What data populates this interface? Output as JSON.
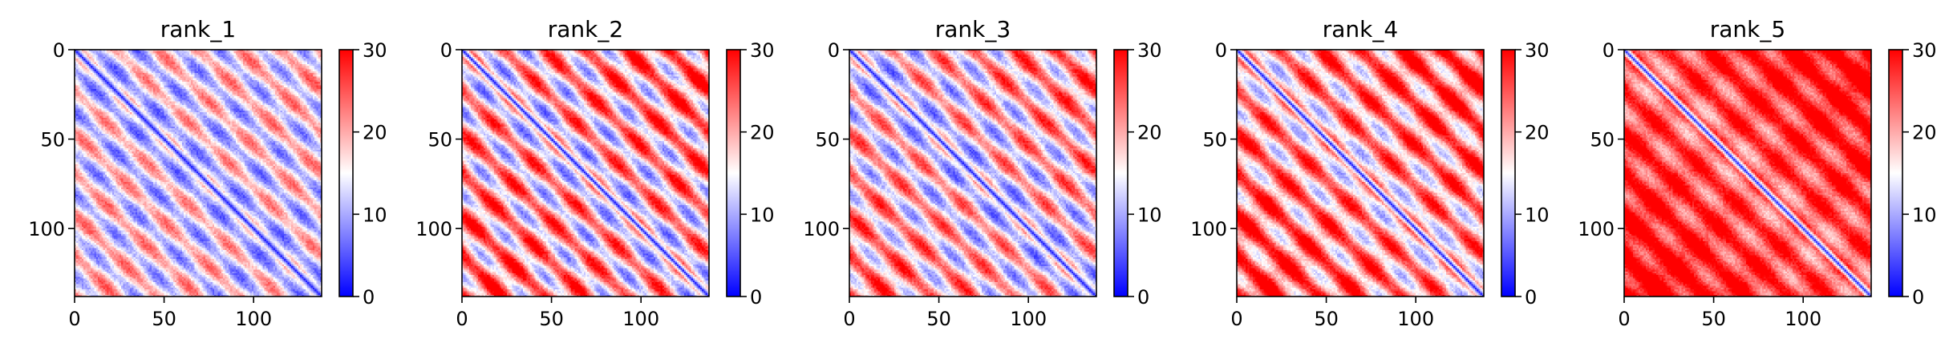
{
  "chart_data": [
    {
      "type": "heatmap",
      "title": "rank_1",
      "size": 138,
      "x_ticks": [
        0,
        50,
        100
      ],
      "y_ticks": [
        0,
        50,
        100
      ],
      "colorbar": {
        "range": [
          0,
          30
        ],
        "ticks": [
          0,
          10,
          20,
          30
        ],
        "colormap": "bwr",
        "colors": [
          "#0000ff",
          "#ffffff",
          "#ff0000"
        ]
      },
      "diagonal_value": 2,
      "pattern": {
        "base": 14,
        "amplitude": 7,
        "period": 23,
        "trend": 0.02
      }
    },
    {
      "type": "heatmap",
      "title": "rank_2",
      "size": 138,
      "x_ticks": [
        0,
        50,
        100
      ],
      "y_ticks": [
        0,
        50,
        100
      ],
      "colorbar": {
        "range": [
          0,
          30
        ],
        "ticks": [
          0,
          10,
          20,
          30
        ],
        "colormap": "bwr",
        "colors": [
          "#0000ff",
          "#ffffff",
          "#ff0000"
        ]
      },
      "diagonal_value": 2,
      "pattern": {
        "base": 17,
        "amplitude": 9,
        "period": 23,
        "trend": 0.04
      }
    },
    {
      "type": "heatmap",
      "title": "rank_3",
      "size": 138,
      "x_ticks": [
        0,
        50,
        100
      ],
      "y_ticks": [
        0,
        50,
        100
      ],
      "colorbar": {
        "range": [
          0,
          30
        ],
        "ticks": [
          0,
          10,
          20,
          30
        ],
        "colormap": "bwr",
        "colors": [
          "#0000ff",
          "#ffffff",
          "#ff0000"
        ]
      },
      "diagonal_value": 2,
      "pattern": {
        "base": 15,
        "amplitude": 8,
        "period": 23,
        "trend": 0.05
      }
    },
    {
      "type": "heatmap",
      "title": "rank_4",
      "size": 138,
      "x_ticks": [
        0,
        50,
        100
      ],
      "y_ticks": [
        0,
        50,
        100
      ],
      "colorbar": {
        "range": [
          0,
          30
        ],
        "ticks": [
          0,
          10,
          20,
          30
        ],
        "colormap": "bwr",
        "colors": [
          "#0000ff",
          "#ffffff",
          "#ff0000"
        ]
      },
      "diagonal_value": 2,
      "pattern": {
        "base": 19,
        "amplitude": 8,
        "period": 23,
        "trend": 0.05
      }
    },
    {
      "type": "heatmap",
      "title": "rank_5",
      "size": 138,
      "x_ticks": [
        0,
        50,
        100
      ],
      "y_ticks": [
        0,
        50,
        100
      ],
      "colorbar": {
        "range": [
          0,
          30
        ],
        "ticks": [
          0,
          10,
          20,
          30
        ],
        "colormap": "bwr",
        "colors": [
          "#0000ff",
          "#ffffff",
          "#ff0000"
        ]
      },
      "diagonal_value": 3,
      "pattern": {
        "base": 24,
        "amplitude": 5,
        "period": 23,
        "trend": 0.05
      }
    }
  ]
}
